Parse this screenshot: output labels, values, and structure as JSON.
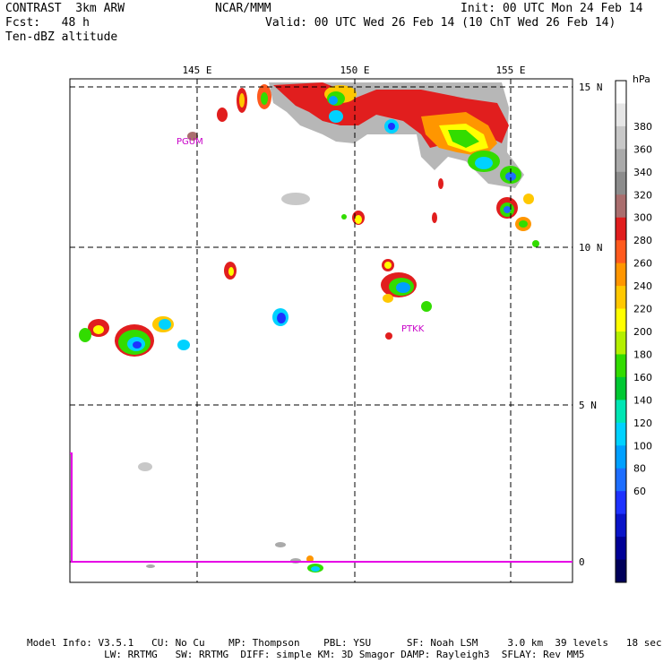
{
  "header": {
    "model": "CONTRAST  3km ARW",
    "forecast": "Fcst:   48 h",
    "field": "Ten-dBZ altitude",
    "center": "NCAR/MMM",
    "init": "Init: 00 UTC Mon 24 Feb 14",
    "valid": "Valid: 00 UTC Wed 26 Feb 14 (10 ChT Wed 26 Feb 14)"
  },
  "map": {
    "lon_labels": [
      "145 E",
      "150 E",
      "155 E"
    ],
    "lat_labels": [
      "15 N",
      "10 N",
      "5 N",
      "0"
    ],
    "stations": [
      {
        "id": "PGUM"
      },
      {
        "id": "PTKK"
      }
    ]
  },
  "colorbar": {
    "unit": "hPa",
    "levels": [
      "380",
      "360",
      "340",
      "320",
      "300",
      "280",
      "260",
      "240",
      "220",
      "200",
      "180",
      "160",
      "140",
      "120",
      "100",
      "80",
      "60"
    ],
    "colors": [
      "#ffffff",
      "#e6e6e6",
      "#c8c8c8",
      "#aaaaaa",
      "#8c8c8c",
      "#aa6e6e",
      "#e11e1e",
      "#ff5a1e",
      "#ff9600",
      "#ffc800",
      "#ffff00",
      "#b4f000",
      "#32dc00",
      "#00c832",
      "#00e6b4",
      "#00d2ff",
      "#00a0ff",
      "#1e6eff",
      "#1e32ff",
      "#0a14c8",
      "#000096",
      "#00005a"
    ]
  },
  "footer": {
    "line1": "Model Info: V3.5.1   CU: No Cu    MP: Thompson    PBL: YSU      SF: Noah LSM     3.0 km  39 levels   18 sec",
    "line2": "             LW: RRTMG   SW: RRTMG  DIFF: simple KM: 3D Smagor DAMP: Rayleigh3  SFLAY: Rev MM5"
  }
}
